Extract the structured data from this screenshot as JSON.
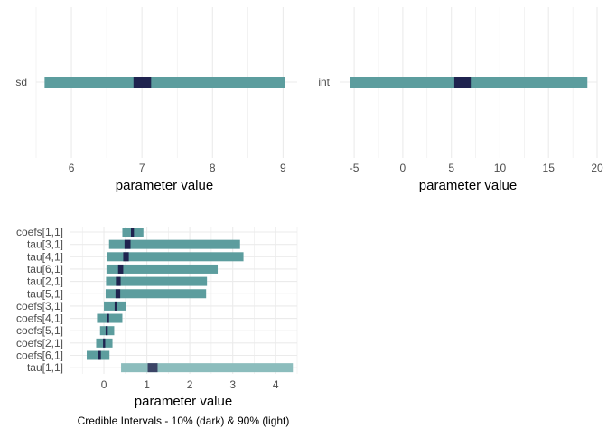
{
  "chart_data": [
    {
      "type": "interval",
      "parameters": [
        "sd"
      ],
      "intervals": [
        {
          "label": "sd",
          "outer": [
            5.62,
            9.03
          ],
          "inner": [
            6.88,
            7.13
          ]
        }
      ],
      "xlim": [
        5.5,
        9.2
      ],
      "xticks": [
        "6",
        "7",
        "8",
        "9"
      ],
      "xtick_values": [
        6,
        7,
        8,
        9
      ],
      "xlabel": "parameter value",
      "grid": true
    },
    {
      "type": "interval",
      "parameters": [
        "int"
      ],
      "intervals": [
        {
          "label": "int",
          "outer": [
            -5.4,
            19.0
          ],
          "inner": [
            5.3,
            7.0
          ]
        }
      ],
      "xlim": [
        -6.5,
        20
      ],
      "xticks": [
        "-5",
        "0",
        "5",
        "10",
        "15",
        "20"
      ],
      "xtick_values": [
        -5,
        0,
        5,
        10,
        15,
        20
      ],
      "xlabel": "parameter value",
      "grid": true
    },
    {
      "type": "interval",
      "parameters": [
        "coefs[1,1]",
        "tau[3,1]",
        "tau[4,1]",
        "tau[6,1]",
        "tau[2,1]",
        "tau[5,1]",
        "coefs[3,1]",
        "coefs[4,1]",
        "coefs[5,1]",
        "coefs[2,1]",
        "coefs[6,1]",
        "tau[1,1]"
      ],
      "intervals": [
        {
          "label": "coefs[1,1]",
          "outer": [
            0.43,
            0.92
          ],
          "inner": [
            0.63,
            0.7
          ]
        },
        {
          "label": "tau[3,1]",
          "outer": [
            0.12,
            3.17
          ],
          "inner": [
            0.48,
            0.62
          ]
        },
        {
          "label": "tau[4,1]",
          "outer": [
            0.08,
            3.25
          ],
          "inner": [
            0.45,
            0.58
          ]
        },
        {
          "label": "tau[6,1]",
          "outer": [
            0.06,
            2.65
          ],
          "inner": [
            0.33,
            0.45
          ]
        },
        {
          "label": "tau[2,1]",
          "outer": [
            0.05,
            2.4
          ],
          "inner": [
            0.28,
            0.39
          ]
        },
        {
          "label": "tau[5,1]",
          "outer": [
            0.04,
            2.38
          ],
          "inner": [
            0.27,
            0.38
          ]
        },
        {
          "label": "coefs[3,1]",
          "outer": [
            0.0,
            0.52
          ],
          "inner": [
            0.25,
            0.3
          ]
        },
        {
          "label": "coefs[4,1]",
          "outer": [
            -0.16,
            0.43
          ],
          "inner": [
            0.07,
            0.12
          ]
        },
        {
          "label": "coefs[5,1]",
          "outer": [
            -0.09,
            0.24
          ],
          "inner": [
            0.04,
            0.09
          ]
        },
        {
          "label": "coefs[2,1]",
          "outer": [
            -0.18,
            0.2
          ],
          "inner": [
            -0.02,
            0.03
          ]
        },
        {
          "label": "coefs[6,1]",
          "outer": [
            -0.4,
            0.13
          ],
          "inner": [
            -0.13,
            -0.07
          ]
        },
        {
          "label": "tau[1,1]",
          "outer": [
            0.4,
            4.4
          ],
          "inner": [
            1.02,
            1.25
          ]
        }
      ],
      "xlim": [
        -0.8,
        4.5
      ],
      "xticks": [
        "0",
        "1",
        "2",
        "3",
        "4"
      ],
      "xtick_values": [
        0,
        1,
        2,
        3,
        4
      ],
      "xlabel": "parameter value",
      "grid": true,
      "caption": "Credible Intervals - 10% (dark) & 90% (light)"
    }
  ],
  "colors": {
    "outer": "#5c9d9e",
    "inner": "#1f234f",
    "outer_faded": "#8cbdbd",
    "inner_faded": "#3b4466",
    "grid": "#ebebeb",
    "tick_text": "#4d4d4d"
  }
}
